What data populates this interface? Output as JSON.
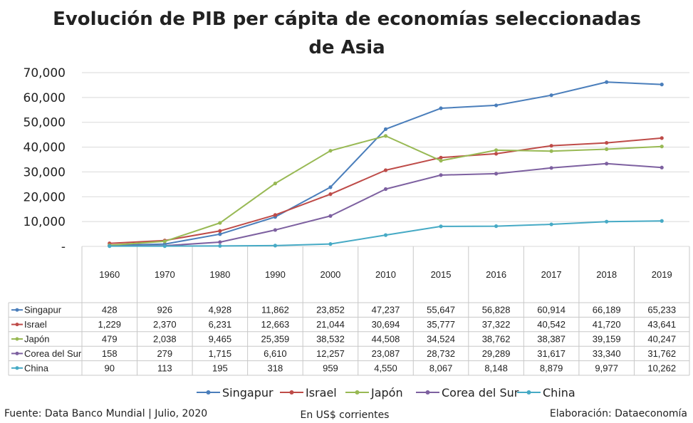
{
  "chart_data": {
    "type": "line",
    "title_lines": [
      "Evolución de PIB per cápita de economías seleccionadas",
      "de Asia"
    ],
    "categories": [
      "1960",
      "1970",
      "1980",
      "1990",
      "2000",
      "2010",
      "2015",
      "2016",
      "2017",
      "2018",
      "2019"
    ],
    "y_ticks": [
      "-",
      "10,000",
      "20,000",
      "30,000",
      "40,000",
      "50,000",
      "60,000",
      "70,000"
    ],
    "ylim": [
      0,
      70000
    ],
    "grid": true,
    "legend_position": "bottom",
    "series": [
      {
        "name": "Singapur",
        "color": "#4a7ebb",
        "values": [
          428,
          926,
          4928,
          11862,
          23852,
          47237,
          55647,
          56828,
          60914,
          66189,
          65233
        ],
        "labels": [
          "428",
          "926",
          "4,928",
          "11,862",
          "23,852",
          "47,237",
          "55,647",
          "56,828",
          "60,914",
          "66,189",
          "65,233"
        ]
      },
      {
        "name": "Israel",
        "color": "#be4b48",
        "values": [
          1229,
          2370,
          6231,
          12663,
          21044,
          30694,
          35777,
          37322,
          40542,
          41720,
          43641
        ],
        "labels": [
          "1,229",
          "2,370",
          "6,231",
          "12,663",
          "21,044",
          "30,694",
          "35,777",
          "37,322",
          "40,542",
          "41,720",
          "43,641"
        ]
      },
      {
        "name": "Japón",
        "color": "#98b954",
        "values": [
          479,
          2038,
          9465,
          25359,
          38532,
          44508,
          34524,
          38762,
          38387,
          39159,
          40247
        ],
        "labels": [
          "479",
          "2,038",
          "9,465",
          "25,359",
          "38,532",
          "44,508",
          "34,524",
          "38,762",
          "38,387",
          "39,159",
          "40,247"
        ]
      },
      {
        "name": "Corea del Sur",
        "color": "#7d60a0",
        "values": [
          158,
          279,
          1715,
          6610,
          12257,
          23087,
          28732,
          29289,
          31617,
          33340,
          31762
        ],
        "labels": [
          "158",
          "279",
          "1,715",
          "6,610",
          "12,257",
          "23,087",
          "28,732",
          "29,289",
          "31,617",
          "33,340",
          "31,762"
        ]
      },
      {
        "name": "China",
        "color": "#46aac5",
        "values": [
          90,
          113,
          195,
          318,
          959,
          4550,
          8067,
          8148,
          8879,
          9977,
          10262
        ],
        "labels": [
          "90",
          "113",
          "195",
          "318",
          "959",
          "4,550",
          "8,067",
          "8,148",
          "8,879",
          "9,977",
          "10,262"
        ]
      }
    ]
  },
  "footer": {
    "source": "Fuente: Data Banco Mundial | Julio, 2020",
    "units": "En US$ corrientes",
    "credit": "Elaboración: Dataeconomía"
  }
}
